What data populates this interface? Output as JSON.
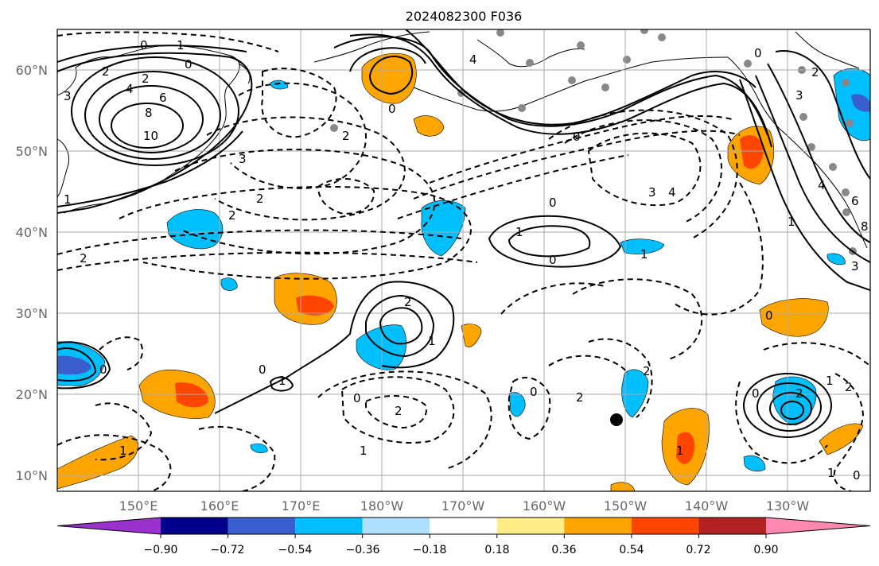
{
  "title": "2024082300 F036",
  "lat_labels": [
    "60°N",
    "50°N",
    "40°N",
    "30°N",
    "20°N",
    "10°N"
  ],
  "lon_labels": [
    "150°E",
    "160°E",
    "170°E",
    "180°W",
    "170°W",
    "160°W",
    "150°W",
    "140°W",
    "130°W"
  ],
  "colorbar": {
    "tick_labels": [
      "−0.90",
      "−0.72",
      "−0.54",
      "−0.36",
      "−0.18",
      "0.18",
      "0.36",
      "0.54",
      "0.72",
      "0.90"
    ],
    "colors": [
      "#9932cc",
      "#00008b",
      "#3a5fcd",
      "#00bfff",
      "#b0e0ff",
      "#ffffff",
      "#ffee88",
      "#ffa500",
      "#ff4500",
      "#b22222",
      "#ff88b0"
    ]
  },
  "contour_labels": [
    {
      "text": "0"
    },
    {
      "text": "1"
    },
    {
      "text": "0"
    },
    {
      "text": "2"
    },
    {
      "text": "4"
    },
    {
      "text": "2"
    },
    {
      "text": "3"
    },
    {
      "text": "6"
    },
    {
      "text": "8"
    },
    {
      "text": "10"
    },
    {
      "text": "3"
    },
    {
      "text": "2"
    },
    {
      "text": "2"
    },
    {
      "text": "1"
    },
    {
      "text": "2"
    },
    {
      "text": "0"
    },
    {
      "text": "4"
    },
    {
      "text": "2"
    },
    {
      "text": "0"
    },
    {
      "text": "3"
    },
    {
      "text": "4"
    },
    {
      "text": "0"
    },
    {
      "text": "1"
    },
    {
      "text": "0"
    },
    {
      "text": "1"
    },
    {
      "text": "2"
    },
    {
      "text": "1"
    },
    {
      "text": "0"
    },
    {
      "text": "1"
    },
    {
      "text": "2"
    },
    {
      "text": "1"
    },
    {
      "text": "1"
    },
    {
      "text": "2"
    },
    {
      "text": "0"
    },
    {
      "text": "2"
    },
    {
      "text": "0"
    },
    {
      "text": "0"
    },
    {
      "text": "2"
    },
    {
      "text": "1"
    },
    {
      "text": "0"
    },
    {
      "text": "1"
    },
    {
      "text": "1"
    },
    {
      "text": "2"
    },
    {
      "text": "0"
    },
    {
      "text": "0"
    },
    {
      "text": "2"
    },
    {
      "text": "3"
    },
    {
      "text": "4"
    },
    {
      "text": "6"
    },
    {
      "text": "8"
    },
    {
      "text": "3"
    },
    {
      "text": "1"
    },
    {
      "text": "0"
    }
  ]
}
